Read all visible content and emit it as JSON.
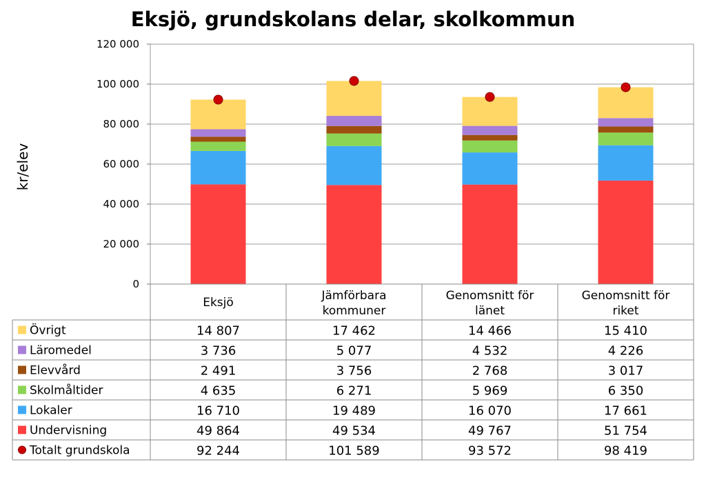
{
  "chart_data": {
    "type": "bar",
    "stacked": true,
    "title": "Eksjö, grundskolans delar, skolkommun",
    "ylabel": "kr/elev",
    "ylim": [
      0,
      120000
    ],
    "yticks": [
      0,
      20000,
      40000,
      60000,
      80000,
      100000,
      120000
    ],
    "ytick_labels": [
      "0",
      "20 000",
      "40 000",
      "60 000",
      "80 000",
      "100 000",
      "120 000"
    ],
    "grid": true,
    "categories": [
      [
        "Eksjö"
      ],
      [
        "Jämförbara",
        "kommuner"
      ],
      [
        "Genomsnitt för",
        "länet"
      ],
      [
        "Genomsnitt för",
        "riket"
      ]
    ],
    "series": [
      {
        "name": "Undervisning",
        "color": "#ff4040",
        "values": [
          49864,
          49534,
          49767,
          51754
        ],
        "labels": [
          "49 864",
          "49 534",
          "49 767",
          "51 754"
        ]
      },
      {
        "name": "Lokaler",
        "color": "#3fa9f5",
        "values": [
          16710,
          19489,
          16070,
          17661
        ],
        "labels": [
          "16 710",
          "19 489",
          "16 070",
          "17 661"
        ]
      },
      {
        "name": "Skolmåltider",
        "color": "#8cd454",
        "values": [
          4635,
          6271,
          5969,
          6350
        ],
        "labels": [
          "4 635",
          "6 271",
          "5 969",
          "6 350"
        ]
      },
      {
        "name": "Elevvård",
        "color": "#9c4f0e",
        "values": [
          2491,
          3756,
          2768,
          3017
        ],
        "labels": [
          "2 491",
          "3 756",
          "2 768",
          "3 017"
        ]
      },
      {
        "name": "Läromedel",
        "color": "#a77ed8",
        "values": [
          3736,
          5077,
          4532,
          4226
        ],
        "labels": [
          "3 736",
          "5 077",
          "4 532",
          "4 226"
        ]
      },
      {
        "name": "Övrigt",
        "color": "#ffd766",
        "values": [
          14807,
          17462,
          14466,
          15410
        ],
        "labels": [
          "14 807",
          "17 462",
          "14 466",
          "15 410"
        ]
      }
    ],
    "total": {
      "name": "Totalt grundskola",
      "color": "#cc0000",
      "values": [
        92244,
        101589,
        93572,
        98419
      ],
      "labels": [
        "92 244",
        "101 589",
        "93 572",
        "98 419"
      ]
    },
    "table_row_order": [
      "Övrigt",
      "Läromedel",
      "Elevvård",
      "Skolmåltider",
      "Lokaler",
      "Undervisning",
      "Totalt grundskola"
    ]
  }
}
